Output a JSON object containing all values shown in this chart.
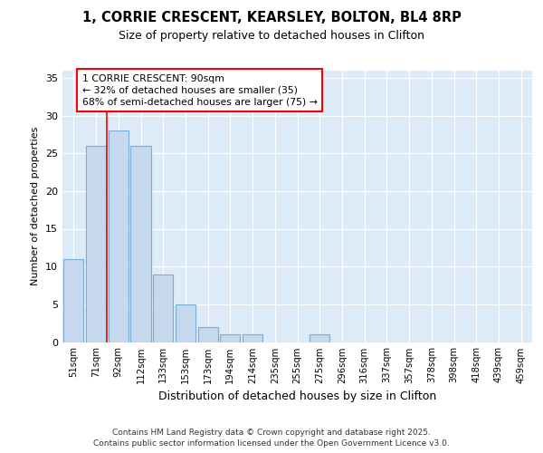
{
  "title1": "1, CORRIE CRESCENT, KEARSLEY, BOLTON, BL4 8RP",
  "title2": "Size of property relative to detached houses in Clifton",
  "xlabel": "Distribution of detached houses by size in Clifton",
  "ylabel": "Number of detached properties",
  "categories": [
    "51sqm",
    "71sqm",
    "92sqm",
    "112sqm",
    "133sqm",
    "153sqm",
    "173sqm",
    "194sqm",
    "214sqm",
    "235sqm",
    "255sqm",
    "275sqm",
    "296sqm",
    "316sqm",
    "337sqm",
    "357sqm",
    "378sqm",
    "398sqm",
    "418sqm",
    "439sqm",
    "459sqm"
  ],
  "values": [
    11,
    26,
    28,
    26,
    9,
    5,
    2,
    1,
    1,
    0,
    0,
    1,
    0,
    0,
    0,
    0,
    0,
    0,
    0,
    0,
    0
  ],
  "bar_color": "#c5d8ee",
  "bar_edge_color": "#7aadd4",
  "red_line_x": 1.5,
  "annotation_line1": "1 CORRIE CRESCENT: 90sqm",
  "annotation_line2": "← 32% of detached houses are smaller (35)",
  "annotation_line3": "68% of semi-detached houses are larger (75) →",
  "ylim": [
    0,
    36
  ],
  "yticks": [
    0,
    5,
    10,
    15,
    20,
    25,
    30,
    35
  ],
  "footer": "Contains HM Land Registry data © Crown copyright and database right 2025.\nContains public sector information licensed under the Open Government Licence v3.0.",
  "plot_bg_color": "#ddeaf7"
}
